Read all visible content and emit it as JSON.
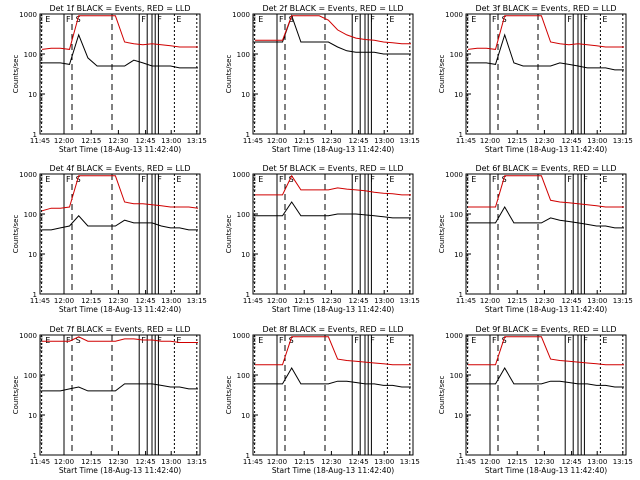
{
  "figure": {
    "tick_labels_x": [
      "11:45",
      "12:00",
      "12:15",
      "12:30",
      "12:45",
      "13:00",
      "13:15"
    ],
    "tick_labels_y": [
      "1",
      "10",
      "100",
      "1000"
    ],
    "xlabel": "Start Time (18-Aug-13 11:42:40)",
    "ylabel": "Counts/sec",
    "markers": [
      "E",
      "F",
      "S",
      "F",
      "F",
      "E"
    ]
  },
  "chart_data": [
    {
      "type": "line",
      "title": "Det 1f BLACK = Events, RED = LLD",
      "ylog": true,
      "ylim": [
        1,
        1000
      ],
      "series": [
        {
          "color": "#000000",
          "values": [
            60,
            60,
            60,
            55,
            300,
            80,
            50,
            50,
            50,
            50,
            70,
            60,
            50,
            50,
            50,
            45,
            45,
            45
          ]
        },
        {
          "color": "#d00000",
          "values": [
            130,
            140,
            140,
            130,
            900,
            900,
            900,
            900,
            900,
            200,
            180,
            170,
            180,
            170,
            160,
            150,
            150,
            150
          ]
        }
      ]
    },
    {
      "type": "line",
      "title": "Det 2f BLACK = Events, RED = LLD",
      "ylog": true,
      "ylim": [
        1,
        1000
      ],
      "series": [
        {
          "color": "#000000",
          "values": [
            200,
            200,
            200,
            200,
            900,
            200,
            200,
            200,
            200,
            150,
            120,
            110,
            110,
            110,
            100,
            100,
            100,
            100
          ]
        },
        {
          "color": "#d00000",
          "values": [
            220,
            220,
            220,
            220,
            900,
            900,
            900,
            900,
            700,
            400,
            300,
            250,
            230,
            220,
            200,
            190,
            180,
            180
          ]
        }
      ]
    },
    {
      "type": "line",
      "title": "Det 3f BLACK = Events, RED = LLD",
      "ylog": true,
      "ylim": [
        1,
        1000
      ],
      "series": [
        {
          "color": "#000000",
          "values": [
            60,
            60,
            60,
            55,
            300,
            60,
            50,
            50,
            50,
            50,
            60,
            55,
            50,
            45,
            45,
            45,
            40,
            40
          ]
        },
        {
          "color": "#d00000",
          "values": [
            130,
            140,
            140,
            130,
            900,
            900,
            900,
            900,
            900,
            200,
            180,
            170,
            180,
            170,
            160,
            150,
            150,
            150
          ]
        }
      ]
    },
    {
      "type": "line",
      "title": "Det 4f BLACK = Events, RED = LLD",
      "ylog": true,
      "ylim": [
        1,
        1000
      ],
      "series": [
        {
          "color": "#000000",
          "values": [
            40,
            40,
            45,
            50,
            90,
            50,
            50,
            50,
            50,
            70,
            60,
            60,
            60,
            50,
            45,
            45,
            40,
            40
          ]
        },
        {
          "color": "#d00000",
          "values": [
            120,
            140,
            140,
            150,
            900,
            900,
            900,
            900,
            900,
            200,
            180,
            180,
            170,
            160,
            150,
            150,
            150,
            140
          ]
        }
      ]
    },
    {
      "type": "line",
      "title": "Det 5f BLACK = Events, RED = LLD",
      "ylog": true,
      "ylim": [
        1,
        1000
      ],
      "series": [
        {
          "color": "#000000",
          "values": [
            90,
            90,
            90,
            90,
            200,
            90,
            90,
            90,
            90,
            100,
            100,
            100,
            95,
            90,
            85,
            80,
            80,
            80
          ]
        },
        {
          "color": "#d00000",
          "values": [
            300,
            300,
            300,
            300,
            900,
            400,
            400,
            400,
            400,
            450,
            420,
            400,
            380,
            350,
            330,
            320,
            300,
            300
          ]
        }
      ]
    },
    {
      "type": "line",
      "title": "Det 6f BLACK = Events, RED = LLD",
      "ylog": true,
      "ylim": [
        1,
        1000
      ],
      "series": [
        {
          "color": "#000000",
          "values": [
            60,
            60,
            60,
            60,
            150,
            60,
            60,
            60,
            60,
            80,
            70,
            65,
            60,
            55,
            50,
            50,
            45,
            45
          ]
        },
        {
          "color": "#d00000",
          "values": [
            150,
            150,
            150,
            150,
            900,
            900,
            900,
            900,
            900,
            220,
            200,
            190,
            180,
            170,
            160,
            150,
            150,
            150
          ]
        }
      ]
    },
    {
      "type": "line",
      "title": "Det 7f BLACK = Events, RED = LLD",
      "ylog": true,
      "ylim": [
        1,
        1000
      ],
      "series": [
        {
          "color": "#000000",
          "values": [
            40,
            40,
            40,
            45,
            50,
            40,
            40,
            40,
            40,
            60,
            60,
            60,
            60,
            55,
            50,
            50,
            45,
            45
          ]
        },
        {
          "color": "#d00000",
          "values": [
            700,
            700,
            700,
            700,
            900,
            700,
            700,
            700,
            700,
            800,
            800,
            750,
            750,
            700,
            700,
            650,
            650,
            650
          ]
        }
      ]
    },
    {
      "type": "line",
      "title": "Det 8f BLACK = Events, RED = LLD",
      "ylog": true,
      "ylim": [
        1,
        1000
      ],
      "series": [
        {
          "color": "#000000",
          "values": [
            60,
            60,
            60,
            60,
            150,
            60,
            60,
            60,
            60,
            70,
            70,
            65,
            60,
            60,
            55,
            55,
            50,
            50
          ]
        },
        {
          "color": "#d00000",
          "values": [
            180,
            180,
            180,
            180,
            900,
            900,
            900,
            900,
            900,
            250,
            230,
            220,
            210,
            200,
            190,
            180,
            180,
            180
          ]
        }
      ]
    },
    {
      "type": "line",
      "title": "Det 9f BLACK = Events, RED = LLD",
      "ylog": true,
      "ylim": [
        1,
        1000
      ],
      "series": [
        {
          "color": "#000000",
          "values": [
            60,
            60,
            60,
            60,
            150,
            60,
            60,
            60,
            60,
            70,
            70,
            65,
            60,
            60,
            55,
            55,
            50,
            50
          ]
        },
        {
          "color": "#d00000",
          "values": [
            180,
            180,
            180,
            180,
            900,
            900,
            900,
            900,
            900,
            250,
            230,
            220,
            210,
            200,
            190,
            180,
            180,
            180
          ]
        }
      ]
    }
  ]
}
